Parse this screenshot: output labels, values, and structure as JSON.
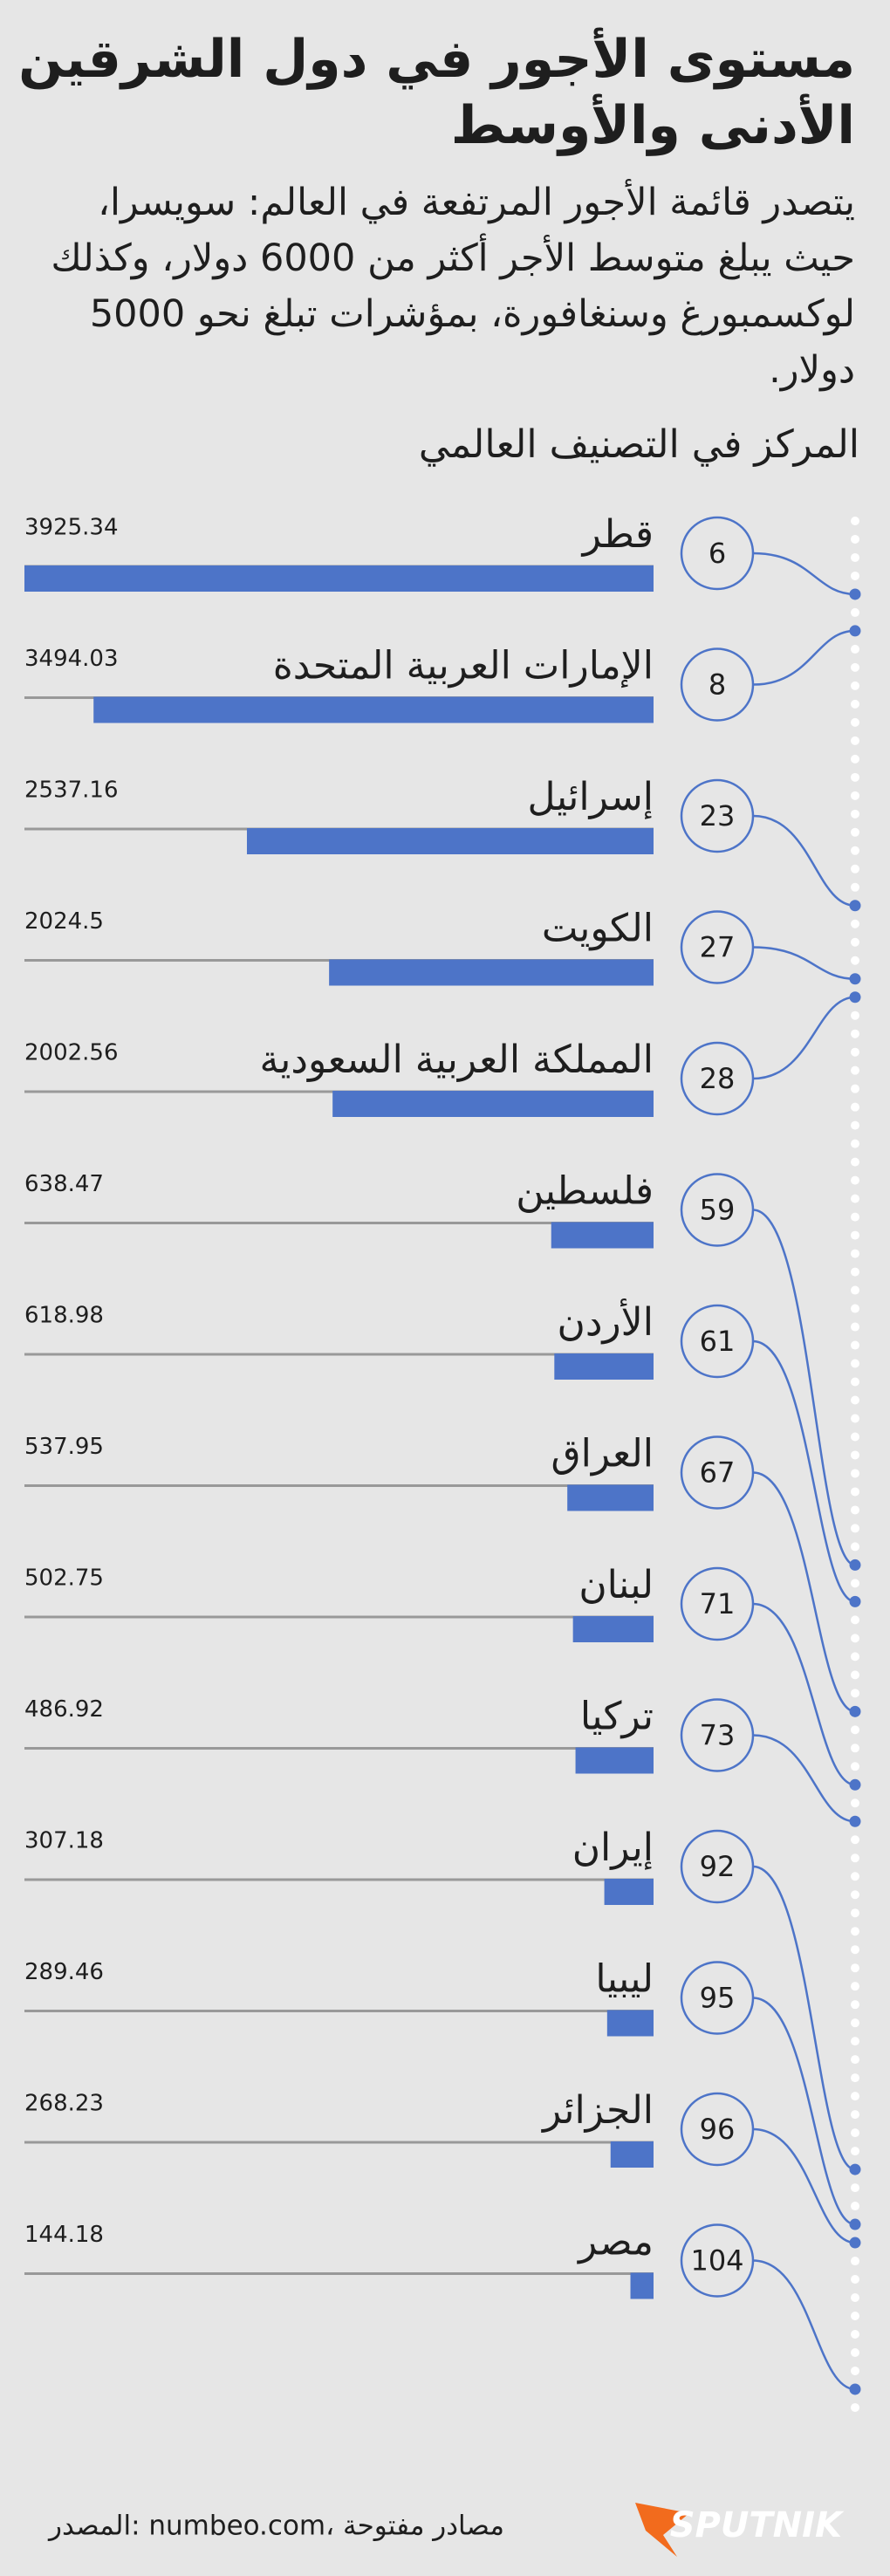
{
  "chart_data": {
    "type": "bar",
    "title": "مستوى الأجور في دول الشرقين الأدنى والأوسط",
    "subtitle": "يتصدر قائمة الأجور المرتفعة في العالم: سويسرا، حيث يبلغ متوسط الأجر أكثر من 6000 دولار، وكذلك لوكسمبورغ وسنغافورة، بمؤشرات تبلغ نحو 5000 دولار.",
    "rank_title": "المركز في التصنيف العالمي",
    "categories": [
      "قطر",
      "الإمارات العربية المتحدة",
      "إسرائيل",
      "الكويت",
      "المملكة العربية السعودية",
      "فلسطين",
      "الأردن",
      "العراق",
      "لبنان",
      "تركيا",
      "إيران",
      "ليبيا",
      "الجزائر",
      "مصر"
    ],
    "values": [
      3925.34,
      3494.03,
      2537.16,
      2024.5,
      2002.56,
      638.47,
      618.98,
      537.95,
      502.75,
      486.92,
      307.18,
      289.46,
      268.23,
      144.18
    ],
    "ranks": [
      6,
      8,
      23,
      27,
      28,
      59,
      61,
      67,
      71,
      73,
      92,
      95,
      96,
      104
    ],
    "color": "#4d74c8",
    "source": "المصدر: numbeo.com، مصادر مفتوحة",
    "logo": "SPUTNIK"
  }
}
